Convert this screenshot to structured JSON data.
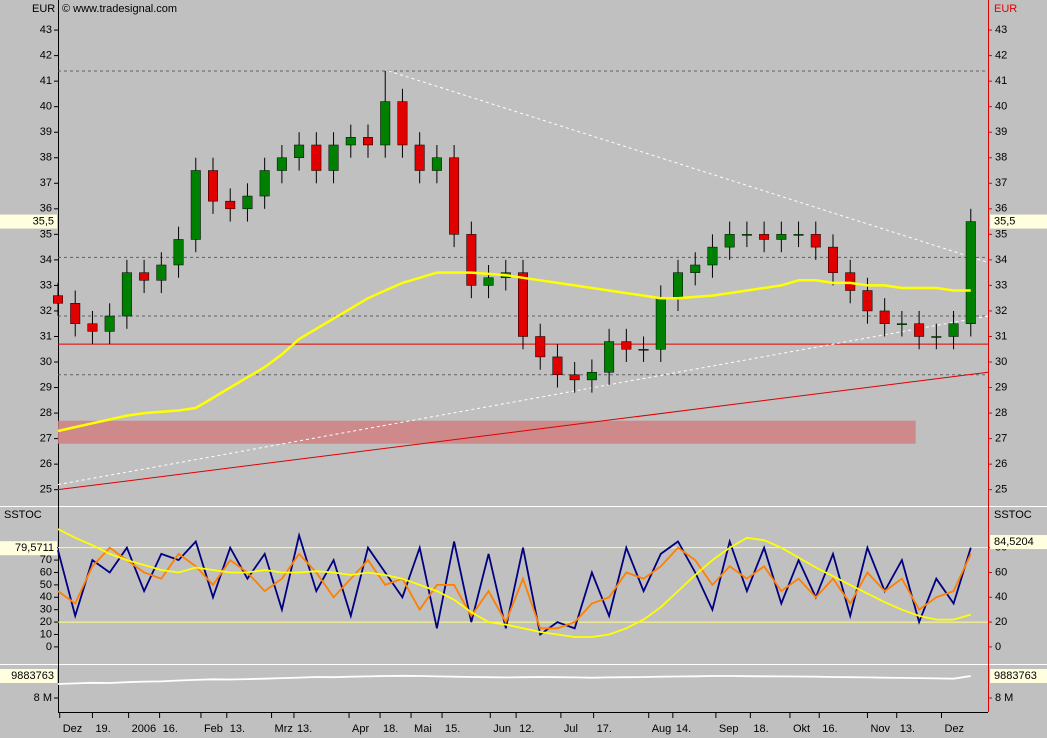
{
  "chart_data": [
    {
      "type": "candlestick",
      "currency": "EUR",
      "source": "© www.tradesignal.com",
      "xlim": [
        0,
        54
      ],
      "x": [
        0,
        1,
        2,
        3,
        4,
        5,
        6,
        7,
        8,
        9,
        10,
        11,
        12,
        13,
        14,
        15,
        16,
        17,
        18,
        19,
        20,
        21,
        22,
        23,
        24,
        25,
        26,
        27,
        28,
        29,
        30,
        31,
        32,
        33,
        34,
        35,
        36,
        37,
        38,
        39,
        40,
        41,
        42,
        43,
        44,
        45,
        46,
        47,
        48,
        49,
        50,
        51,
        52,
        53
      ],
      "xticks": [
        {
          "value": 0.1,
          "label": "Dez"
        },
        {
          "value": 2,
          "label": "19."
        },
        {
          "value": 4.1,
          "label": "2006"
        },
        {
          "value": 5.9,
          "label": "16."
        },
        {
          "value": 8.3,
          "label": "Feb"
        },
        {
          "value": 9.8,
          "label": "13."
        },
        {
          "value": 12.4,
          "label": "Mrz"
        },
        {
          "value": 13.7,
          "label": "13."
        },
        {
          "value": 16.9,
          "label": "Apr"
        },
        {
          "value": 18.7,
          "label": "18."
        },
        {
          "value": 20.5,
          "label": "Mai"
        },
        {
          "value": 22.3,
          "label": "15."
        },
        {
          "value": 25.1,
          "label": "Jun"
        },
        {
          "value": 26.6,
          "label": "12."
        },
        {
          "value": 29.2,
          "label": "Jul"
        },
        {
          "value": 31.1,
          "label": "17."
        },
        {
          "value": 34.3,
          "label": "Aug"
        },
        {
          "value": 35.7,
          "label": "14."
        },
        {
          "value": 38.2,
          "label": "Sep"
        },
        {
          "value": 40.2,
          "label": "18."
        },
        {
          "value": 42.5,
          "label": "Okt"
        },
        {
          "value": 44.2,
          "label": "16."
        },
        {
          "value": 47,
          "label": "Nov"
        },
        {
          "value": 48.7,
          "label": "13."
        },
        {
          "value": 51.3,
          "label": "Dez"
        }
      ],
      "ylim": [
        24.4,
        44.1
      ],
      "yticks": [
        25,
        26,
        27,
        28,
        29,
        30,
        31,
        32,
        33,
        34,
        35,
        36,
        37,
        38,
        39,
        40,
        41,
        42,
        43
      ],
      "open": [
        32.6,
        32.3,
        31.5,
        31.2,
        31.8,
        33.5,
        33.2,
        33.8,
        34.8,
        37.5,
        36.3,
        36.0,
        36.5,
        37.5,
        38.0,
        38.5,
        37.5,
        38.5,
        38.8,
        38.5,
        40.2,
        38.5,
        37.5,
        38.0,
        35.0,
        33.0,
        33.3,
        33.5,
        31.0,
        30.2,
        29.5,
        29.3,
        29.6,
        30.8,
        30.5,
        30.5,
        32.5,
        33.5,
        33.8,
        34.5,
        35.0,
        35.0,
        34.8,
        35.0,
        35.0,
        34.5,
        33.5,
        32.8,
        32.0,
        31.5,
        31.5,
        31.0,
        31.0,
        31.5
      ],
      "high": [
        33.1,
        32.8,
        32.0,
        32.3,
        34.0,
        34.0,
        34.3,
        35.3,
        38.0,
        38.0,
        36.8,
        37.0,
        38.0,
        38.5,
        39.0,
        39.0,
        39.0,
        39.3,
        39.3,
        41.4,
        40.7,
        39.0,
        38.5,
        38.5,
        35.5,
        33.8,
        34.0,
        34.0,
        31.5,
        30.7,
        30.0,
        30.1,
        31.3,
        31.3,
        31.0,
        33.0,
        34.0,
        34.3,
        35.0,
        35.5,
        35.5,
        35.5,
        35.5,
        35.5,
        35.5,
        35.0,
        34.0,
        33.3,
        32.5,
        32.0,
        32.0,
        31.5,
        32.0,
        36.0
      ],
      "low": [
        31.8,
        31.0,
        30.7,
        30.7,
        31.3,
        32.7,
        32.7,
        33.3,
        34.3,
        35.8,
        35.5,
        35.5,
        36.0,
        37.0,
        37.5,
        37.0,
        37.0,
        38.0,
        38.0,
        38.0,
        38.0,
        37.0,
        37.0,
        34.5,
        32.5,
        32.5,
        32.8,
        30.5,
        29.7,
        29.0,
        28.8,
        28.8,
        29.1,
        30.0,
        30.0,
        30.0,
        32.0,
        33.0,
        33.3,
        34.0,
        34.5,
        34.3,
        34.3,
        34.5,
        34.0,
        33.0,
        32.3,
        31.5,
        31.0,
        31.0,
        30.5,
        30.5,
        30.5,
        31.0
      ],
      "close": [
        32.3,
        31.5,
        31.2,
        31.8,
        33.5,
        33.2,
        33.8,
        34.8,
        37.5,
        36.3,
        36.0,
        36.5,
        37.5,
        38.0,
        38.5,
        37.5,
        38.5,
        38.8,
        38.5,
        40.2,
        38.5,
        37.5,
        38.0,
        35.0,
        33.0,
        33.3,
        33.5,
        31.0,
        30.2,
        29.5,
        29.3,
        29.6,
        30.8,
        30.5,
        30.5,
        32.5,
        33.5,
        33.8,
        34.5,
        35.0,
        35.0,
        34.8,
        35.0,
        35.0,
        34.5,
        33.5,
        32.8,
        32.0,
        31.5,
        31.5,
        31.0,
        31.0,
        31.5,
        35.5
      ],
      "up_color": "#008000",
      "down_color": "#e00000",
      "series": [
        {
          "color": "#ffff00",
          "values": [
            27.3,
            27.45,
            27.6,
            27.75,
            27.9,
            28.0,
            28.05,
            28.1,
            28.2,
            28.6,
            29.0,
            29.4,
            29.8,
            30.3,
            30.9,
            31.3,
            31.7,
            32.1,
            32.5,
            32.8,
            33.1,
            33.3,
            33.5,
            33.5,
            33.5,
            33.45,
            33.4,
            33.3,
            33.2,
            33.1,
            33.0,
            32.9,
            32.8,
            32.7,
            32.6,
            32.5,
            32.5,
            32.55,
            32.6,
            32.7,
            32.8,
            32.9,
            33.0,
            33.2,
            33.2,
            33.1,
            33.1,
            33.0,
            33.0,
            32.9,
            32.9,
            32.9,
            32.8,
            32.8
          ]
        }
      ],
      "hlines": [
        41.4,
        34.1,
        31.8,
        29.5
      ],
      "hline_color": "#606060",
      "support": 30.7,
      "support_color": "#e00000",
      "zone": {
        "xlim": [
          0,
          49.8
        ],
        "ylim": [
          26.8,
          27.7
        ],
        "color": "#d08080"
      },
      "trendlines": [
        {
          "x": [
            0,
            54
          ],
          "y": [
            25.0,
            29.6
          ],
          "color": "#e00000"
        },
        {
          "x": [
            0,
            54
          ],
          "y": [
            25.2,
            31.8
          ],
          "color": "#ffffff"
        },
        {
          "x": [
            19.2,
            54
          ],
          "y": [
            41.4,
            33.9
          ],
          "color": "#ffffff"
        }
      ],
      "last_values": [
        {
          "value": 35.5,
          "label": "35,5"
        }
      ]
    },
    {
      "type": "line",
      "title": "SSTOC",
      "ylim": [
        -13,
        112
      ],
      "yticks": [
        0,
        10,
        20,
        30,
        40,
        50,
        60,
        70,
        80
      ],
      "y2ticks": [
        0,
        20,
        40,
        60,
        80
      ],
      "hlines": [
        20,
        80
      ],
      "hline_color": "#ffff80",
      "series": [
        {
          "color": "#000080",
          "values": [
            78,
            25,
            70,
            60,
            80,
            45,
            75,
            70,
            85,
            40,
            80,
            55,
            75,
            30,
            90,
            45,
            70,
            25,
            80,
            60,
            40,
            80,
            15,
            85,
            20,
            75,
            15,
            80,
            10,
            20,
            15,
            60,
            25,
            80,
            45,
            75,
            85,
            60,
            30,
            85,
            45,
            80,
            35,
            70,
            40,
            75,
            25,
            80,
            45,
            70,
            20,
            55,
            35,
            80
          ]
        },
        {
          "color": "#ff8000",
          "values": [
            45,
            35,
            65,
            80,
            70,
            60,
            55,
            75,
            65,
            50,
            70,
            60,
            45,
            55,
            75,
            60,
            40,
            55,
            70,
            50,
            55,
            30,
            50,
            50,
            25,
            45,
            20,
            55,
            15,
            15,
            20,
            35,
            40,
            60,
            55,
            65,
            80,
            70,
            50,
            65,
            55,
            65,
            45,
            55,
            40,
            55,
            35,
            60,
            45,
            55,
            30,
            40,
            45,
            75
          ]
        },
        {
          "color": "#ffff00",
          "values": [
            95,
            88,
            82,
            75,
            70,
            66,
            62,
            60,
            64,
            62,
            60,
            60,
            62,
            60,
            60,
            61,
            60,
            58,
            60,
            58,
            55,
            50,
            45,
            38,
            28,
            20,
            18,
            15,
            12,
            10,
            8,
            8,
            10,
            15,
            22,
            32,
            45,
            58,
            70,
            80,
            88,
            86,
            80,
            72,
            64,
            57,
            50,
            43,
            36,
            30,
            25,
            22,
            22,
            26
          ]
        }
      ],
      "last_values": [
        {
          "value": 79.5711,
          "label": "79,5711"
        }
      ],
      "last_values_right": [
        {
          "value": 84.5204,
          "label": "84,5204"
        }
      ]
    },
    {
      "type": "line",
      "ylim": [
        6800000,
        10740000
      ],
      "yticks": [
        {
          "value": 8000000,
          "label": "8 M"
        }
      ],
      "series": [
        {
          "color": "#ffffff",
          "values": [
            9200000,
            9250000,
            9300000,
            9280000,
            9350000,
            9400000,
            9420000,
            9500000,
            9550000,
            9600000,
            9580000,
            9620000,
            9650000,
            9700000,
            9750000,
            9800000,
            9780000,
            9820000,
            9850000,
            9880000,
            9900000,
            9880000,
            9850000,
            9820000,
            9800000,
            9780000,
            9760000,
            9780000,
            9800000,
            9780000,
            9760000,
            9740000,
            9760000,
            9780000,
            9800000,
            9820000,
            9840000,
            9860000,
            9880000,
            9880000,
            9870000,
            9860000,
            9850000,
            9840000,
            9820000,
            9800000,
            9780000,
            9760000,
            9740000,
            9720000,
            9700000,
            9680000,
            9650000,
            9883763
          ]
        }
      ],
      "last_values": [
        9883763
      ]
    }
  ]
}
